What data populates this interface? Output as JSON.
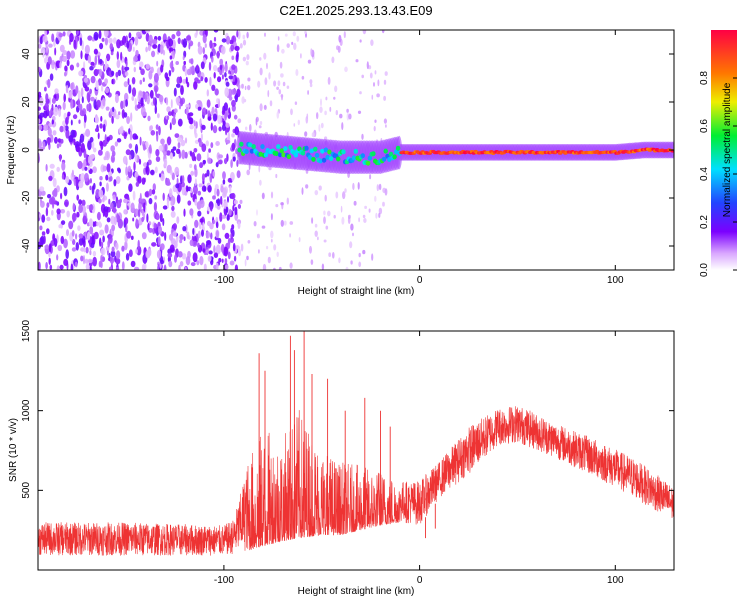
{
  "figure": {
    "title": "C2E1.2025.293.13.43.E09"
  },
  "chart_data": [
    {
      "type": "heatmap",
      "xlabel": "Height of straight line (km)",
      "ylabel": "Frequency (Hz)",
      "xlim": [
        -195,
        130
      ],
      "ylim": [
        -50,
        50
      ],
      "xticks": [
        -100,
        0,
        100
      ],
      "yticks": [
        -40,
        -20,
        0,
        20,
        40
      ],
      "colorbar": {
        "label": "Normalized spectral amplitude",
        "range": [
          0,
          1
        ],
        "ticks": [
          0,
          0.2,
          0.4,
          0.6,
          0.8
        ],
        "tick_labels": [
          "0.0",
          "0.2",
          "0.4",
          "0.6",
          "0.8"
        ]
      },
      "regions": [
        {
          "x_range": [
            -195,
            -92
          ],
          "description_values": {
            "freq_spread": [
              -50,
              50
            ],
            "amplitude": [
              0.05,
              0.25
            ]
          }
        },
        {
          "x_range": [
            -92,
            -10
          ],
          "freq_center_start": 0,
          "freq_center_end": -3,
          "amplitude": [
            0.3,
            0.6
          ]
        },
        {
          "x_range": [
            -10,
            130
          ],
          "freq_center": -1,
          "amplitude": [
            0.8,
            1.0
          ]
        }
      ],
      "ridge": [
        [
          -92,
          1
        ],
        [
          -80,
          0
        ],
        [
          -60,
          -1.5
        ],
        [
          -40,
          -3
        ],
        [
          -20,
          -3
        ],
        [
          -10,
          -1
        ],
        [
          0,
          -1
        ],
        [
          50,
          -1
        ],
        [
          100,
          -1
        ],
        [
          115,
          0
        ],
        [
          130,
          0
        ]
      ]
    },
    {
      "type": "line",
      "xlabel": "Height of straight line (km)",
      "ylabel": "SNR (10 * v/v)",
      "xlim": [
        -195,
        130
      ],
      "ylim": [
        0,
        1500
      ],
      "xticks": [
        -100,
        0,
        100
      ],
      "yticks": [
        500,
        1000,
        1500
      ],
      "color": "#ee3333",
      "envelope": [
        {
          "x": -195,
          "lo": 90,
          "hi": 300
        },
        {
          "x": -150,
          "lo": 90,
          "hi": 300
        },
        {
          "x": -100,
          "lo": 90,
          "hi": 280
        },
        {
          "x": -95,
          "lo": 100,
          "hi": 320
        },
        {
          "x": -88,
          "lo": 120,
          "hi": 650
        },
        {
          "x": -80,
          "lo": 150,
          "hi": 820
        },
        {
          "x": -70,
          "lo": 180,
          "hi": 780
        },
        {
          "x": -62,
          "lo": 200,
          "hi": 950
        },
        {
          "x": -50,
          "lo": 220,
          "hi": 720
        },
        {
          "x": -40,
          "lo": 220,
          "hi": 640
        },
        {
          "x": -30,
          "lo": 250,
          "hi": 620
        },
        {
          "x": -20,
          "lo": 280,
          "hi": 600
        },
        {
          "x": -10,
          "lo": 300,
          "hi": 560
        },
        {
          "x": 0,
          "lo": 280,
          "hi": 560
        },
        {
          "x": 10,
          "lo": 450,
          "hi": 680
        },
        {
          "x": 25,
          "lo": 600,
          "hi": 900
        },
        {
          "x": 40,
          "lo": 780,
          "hi": 1020
        },
        {
          "x": 50,
          "lo": 800,
          "hi": 1040
        },
        {
          "x": 70,
          "lo": 700,
          "hi": 920
        },
        {
          "x": 90,
          "lo": 580,
          "hi": 820
        },
        {
          "x": 110,
          "lo": 450,
          "hi": 700
        },
        {
          "x": 130,
          "lo": 300,
          "hi": 520
        }
      ],
      "spikes": [
        {
          "x": -82,
          "y": 1360
        },
        {
          "x": -79,
          "y": 1250
        },
        {
          "x": -66,
          "y": 1470
        },
        {
          "x": -64,
          "y": 1380
        },
        {
          "x": -59,
          "y": 1500
        },
        {
          "x": -55,
          "y": 1230
        },
        {
          "x": -47,
          "y": 1200
        },
        {
          "x": -38,
          "y": 1000
        },
        {
          "x": -28,
          "y": 1080
        },
        {
          "x": -20,
          "y": 1000
        },
        {
          "x": -15,
          "y": 900
        },
        {
          "x": 3,
          "y": 200
        },
        {
          "x": 8,
          "y": 260
        }
      ]
    }
  ]
}
